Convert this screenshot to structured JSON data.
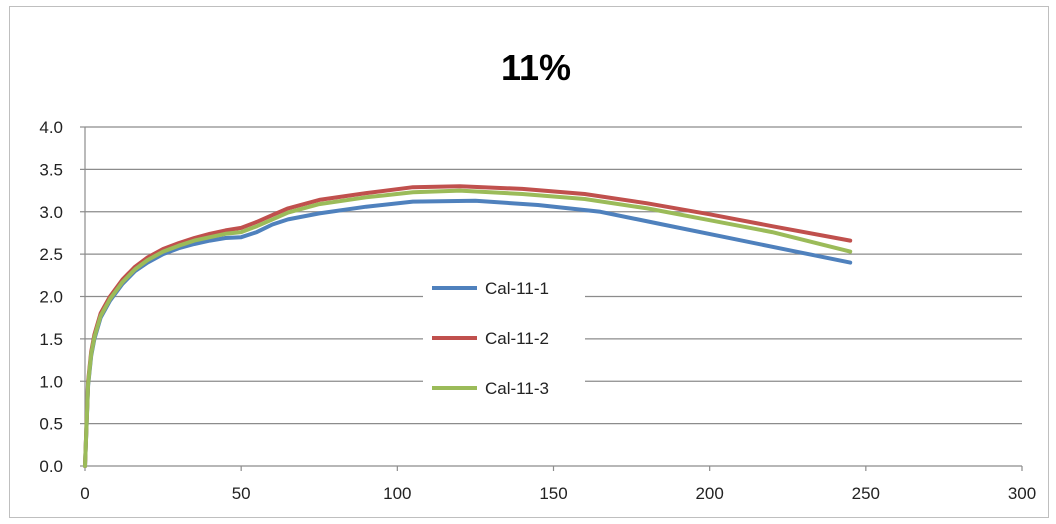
{
  "chart_data": {
    "type": "line",
    "title": "11%",
    "xlabel": "",
    "ylabel": "",
    "xlim": [
      0,
      300
    ],
    "ylim": [
      0,
      4.0
    ],
    "x_ticks": [
      "0",
      "50",
      "100",
      "150",
      "200",
      "250",
      "300"
    ],
    "y_ticks": [
      "0.0",
      "0.5",
      "1.0",
      "1.5",
      "2.0",
      "2.5",
      "3.0",
      "3.5",
      "4.0"
    ],
    "grid": "horizontal",
    "legend": "center",
    "series": [
      {
        "name": "Cal-11-1",
        "color": "#4f81bd",
        "points": [
          [
            0,
            0
          ],
          [
            1,
            0.95
          ],
          [
            2,
            1.3
          ],
          [
            3,
            1.5
          ],
          [
            5,
            1.75
          ],
          [
            8,
            1.95
          ],
          [
            12,
            2.15
          ],
          [
            16,
            2.3
          ],
          [
            20,
            2.4
          ],
          [
            25,
            2.5
          ],
          [
            30,
            2.57
          ],
          [
            35,
            2.62
          ],
          [
            40,
            2.66
          ],
          [
            45,
            2.69
          ],
          [
            50,
            2.7
          ],
          [
            55,
            2.76
          ],
          [
            60,
            2.85
          ],
          [
            65,
            2.91
          ],
          [
            75,
            2.98
          ],
          [
            90,
            3.06
          ],
          [
            105,
            3.12
          ],
          [
            125,
            3.13
          ],
          [
            145,
            3.08
          ],
          [
            165,
            3.0
          ],
          [
            185,
            2.85
          ],
          [
            205,
            2.7
          ],
          [
            225,
            2.55
          ],
          [
            245,
            2.4
          ]
        ]
      },
      {
        "name": "Cal-11-2",
        "color": "#c0504d",
        "points": [
          [
            0,
            0
          ],
          [
            1,
            1.0
          ],
          [
            2,
            1.35
          ],
          [
            3,
            1.55
          ],
          [
            5,
            1.8
          ],
          [
            8,
            2.0
          ],
          [
            12,
            2.2
          ],
          [
            16,
            2.35
          ],
          [
            20,
            2.46
          ],
          [
            25,
            2.56
          ],
          [
            30,
            2.63
          ],
          [
            35,
            2.69
          ],
          [
            40,
            2.74
          ],
          [
            45,
            2.78
          ],
          [
            50,
            2.81
          ],
          [
            55,
            2.88
          ],
          [
            60,
            2.96
          ],
          [
            65,
            3.04
          ],
          [
            75,
            3.14
          ],
          [
            90,
            3.22
          ],
          [
            105,
            3.29
          ],
          [
            120,
            3.3
          ],
          [
            140,
            3.27
          ],
          [
            160,
            3.21
          ],
          [
            180,
            3.1
          ],
          [
            200,
            2.97
          ],
          [
            220,
            2.83
          ],
          [
            245,
            2.66
          ]
        ]
      },
      {
        "name": "Cal-11-3",
        "color": "#9bbb59",
        "points": [
          [
            0,
            0
          ],
          [
            1,
            0.97
          ],
          [
            2,
            1.32
          ],
          [
            3,
            1.52
          ],
          [
            5,
            1.77
          ],
          [
            8,
            1.97
          ],
          [
            12,
            2.17
          ],
          [
            16,
            2.32
          ],
          [
            20,
            2.43
          ],
          [
            25,
            2.53
          ],
          [
            30,
            2.6
          ],
          [
            35,
            2.66
          ],
          [
            40,
            2.7
          ],
          [
            45,
            2.74
          ],
          [
            50,
            2.76
          ],
          [
            55,
            2.83
          ],
          [
            60,
            2.91
          ],
          [
            65,
            2.99
          ],
          [
            75,
            3.09
          ],
          [
            90,
            3.17
          ],
          [
            105,
            3.23
          ],
          [
            120,
            3.25
          ],
          [
            140,
            3.21
          ],
          [
            160,
            3.15
          ],
          [
            180,
            3.04
          ],
          [
            200,
            2.9
          ],
          [
            220,
            2.76
          ],
          [
            245,
            2.53
          ]
        ]
      }
    ]
  }
}
